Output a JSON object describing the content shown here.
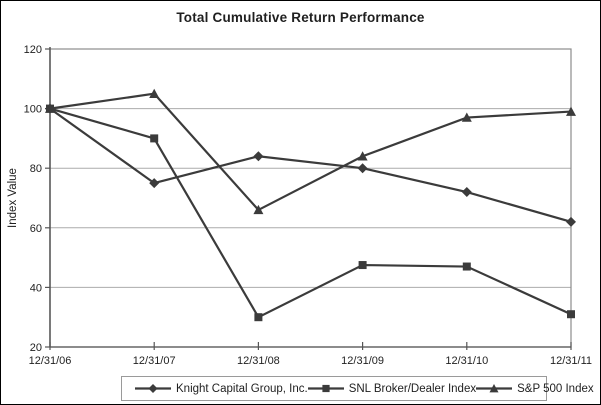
{
  "chart_data": {
    "type": "line",
    "title": "Total Cumulative Return Performance",
    "xlabel": "",
    "ylabel": "Index Value",
    "ylim": [
      20,
      120
    ],
    "yticks": [
      20,
      40,
      60,
      80,
      100,
      120
    ],
    "grid": "horizontal",
    "legend_position": "bottom",
    "categories": [
      "12/31/06",
      "12/31/07",
      "12/31/08",
      "12/31/09",
      "12/31/10",
      "12/31/11"
    ],
    "series": [
      {
        "name": "Knight Capital Group, Inc.",
        "marker": "diamond",
        "values": [
          100,
          75,
          84,
          80,
          72,
          62
        ]
      },
      {
        "name": "SNL Broker/Dealer Index",
        "marker": "square",
        "values": [
          100,
          90,
          30,
          47.5,
          47,
          31
        ]
      },
      {
        "name": "S&P 500 Index",
        "marker": "triangle",
        "values": [
          100,
          105,
          66,
          84,
          97,
          99
        ]
      }
    ],
    "colors": {
      "line": "#3b3b3b",
      "grid": "#ababab",
      "plot_border": "#8c8c8c",
      "axis": "#555555",
      "text": "#1f1f1f",
      "legend_border": "#9a9a9a",
      "frame_border": "#000000"
    }
  }
}
